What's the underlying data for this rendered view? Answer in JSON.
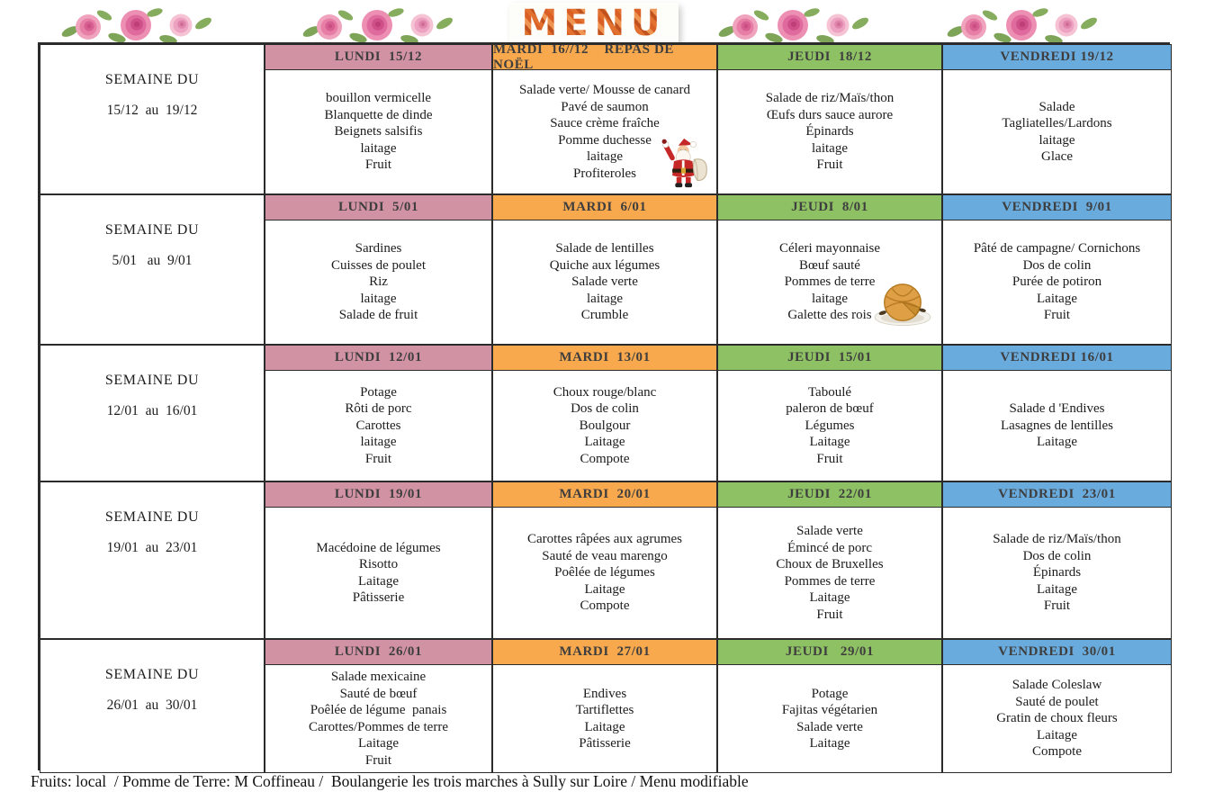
{
  "title": "MENU",
  "footer": "Fruits: local  / Pomme de Terre: M Coffineau /  Boulangerie les trois marches à Sully sur Loire / Menu modifiable",
  "colors": {
    "lundi": "#d192a4",
    "mardi": "#f8a84d",
    "jeudi": "#8ec064",
    "vendredi": "#6aabde"
  },
  "weeks": [
    {
      "label": "SEMAINE DU",
      "dates": "15/12  au  19/12",
      "days": [
        {
          "header": "LUNDI  15/12",
          "color": "lundi",
          "items": [
            "bouillon vermicelle",
            "Blanquette de dinde",
            "Beignets salsifis",
            "laitage",
            "Fruit"
          ]
        },
        {
          "header": "MARDI  16//12    REPAS DE NOËL",
          "color": "mardi",
          "items": [
            "Salade verte/ Mousse de canard",
            "Pavé de saumon",
            "Sauce crème fraîche",
            "Pomme duchesse",
            "laitage",
            "Profiteroles"
          ],
          "image": "santa"
        },
        {
          "header": "JEUDI  18/12",
          "color": "jeudi",
          "items": [
            "Salade de riz/Maïs/thon",
            "Œufs durs sauce aurore",
            "Épinards",
            "laitage",
            "Fruit"
          ]
        },
        {
          "header": "VENDREDI 19/12",
          "color": "vendredi",
          "items": [
            "Salade",
            "Tagliatelles/Lardons",
            "laitage",
            "Glace"
          ]
        }
      ]
    },
    {
      "label": "SEMAINE DU",
      "dates": "5/01   au  9/01",
      "days": [
        {
          "header": "LUNDI  5/01",
          "color": "lundi",
          "items": [
            "Sardines",
            "Cuisses de poulet",
            "Riz",
            "laitage",
            "Salade de fruit"
          ]
        },
        {
          "header": "MARDI  6/01",
          "color": "mardi",
          "items": [
            "Salade de lentilles",
            "Quiche aux légumes",
            "Salade verte",
            "laitage",
            "Crumble"
          ]
        },
        {
          "header": "JEUDI  8/01",
          "color": "jeudi",
          "items": [
            "Céleri mayonnaise",
            "Bœuf sauté",
            "Pommes de terre",
            "laitage",
            "Galette des rois"
          ],
          "image": "galette"
        },
        {
          "header": "VENDREDI  9/01",
          "color": "vendredi",
          "items": [
            "Pâté de campagne/ Cornichons",
            "Dos de colin",
            "Purée de potiron",
            "Laitage",
            "Fruit"
          ]
        }
      ]
    },
    {
      "label": "SEMAINE DU",
      "dates": "12/01  au  16/01",
      "days": [
        {
          "header": "LUNDI  12/01",
          "color": "lundi",
          "items": [
            "Potage",
            "Rôti de porc",
            "Carottes",
            "laitage",
            "Fruit"
          ]
        },
        {
          "header": "MARDI  13/01",
          "color": "mardi",
          "items": [
            "Choux rouge/blanc",
            "Dos de colin",
            "Boulgour",
            "Laitage",
            "Compote"
          ]
        },
        {
          "header": "JEUDI  15/01",
          "color": "jeudi",
          "items": [
            "Taboulé",
            "paleron de bœuf",
            "Légumes",
            "Laitage",
            "Fruit"
          ]
        },
        {
          "header": "VENDREDI 16/01",
          "color": "vendredi",
          "items": [
            "Salade d 'Endives",
            "Lasagnes de lentilles",
            "Laitage"
          ]
        }
      ]
    },
    {
      "label": "SEMAINE DU",
      "dates": "19/01  au  23/01",
      "days": [
        {
          "header": "LUNDI  19/01",
          "color": "lundi",
          "items": [
            "Macédoine de légumes",
            "Risotto",
            "Laitage",
            "Pâtisserie"
          ]
        },
        {
          "header": "MARDI  20/01",
          "color": "mardi",
          "items": [
            "Carottes râpées aux agrumes",
            "Sauté de veau marengo",
            "Poêlée de légumes",
            "Laitage",
            "Compote"
          ]
        },
        {
          "header": "JEUDI  22/01",
          "color": "jeudi",
          "items": [
            "Salade verte",
            "Émincé de porc",
            "Choux de Bruxelles",
            "Pommes de terre",
            "Laitage",
            "Fruit"
          ]
        },
        {
          "header": "VENDREDI  23/01",
          "color": "vendredi",
          "items": [
            "Salade de riz/Maïs/thon",
            "Dos de colin",
            "Épinards",
            "Laitage",
            "Fruit"
          ]
        }
      ]
    },
    {
      "label": "SEMAINE DU",
      "dates": "26/01  au  30/01",
      "days": [
        {
          "header": "LUNDI  26/01",
          "color": "lundi",
          "items": [
            "Salade mexicaine",
            "Sauté de bœuf",
            "Poêlée de légume  panais",
            "Carottes/Pommes de terre",
            "Laitage",
            "Fruit"
          ]
        },
        {
          "header": "MARDI  27/01",
          "color": "mardi",
          "items": [
            "Endives",
            "Tartiflettes",
            "Laitage",
            "Pâtisserie"
          ]
        },
        {
          "header": "JEUDI   29/01",
          "color": "jeudi",
          "items": [
            "Potage",
            "Fajitas végétarien",
            "Salade verte",
            "Laitage"
          ]
        },
        {
          "header": "VENDREDI  30/01",
          "color": "vendredi",
          "items": [
            "Salade Coleslaw",
            "Sauté de poulet",
            "Gratin de choux fleurs",
            "Laitage",
            "Compote"
          ]
        }
      ]
    }
  ]
}
